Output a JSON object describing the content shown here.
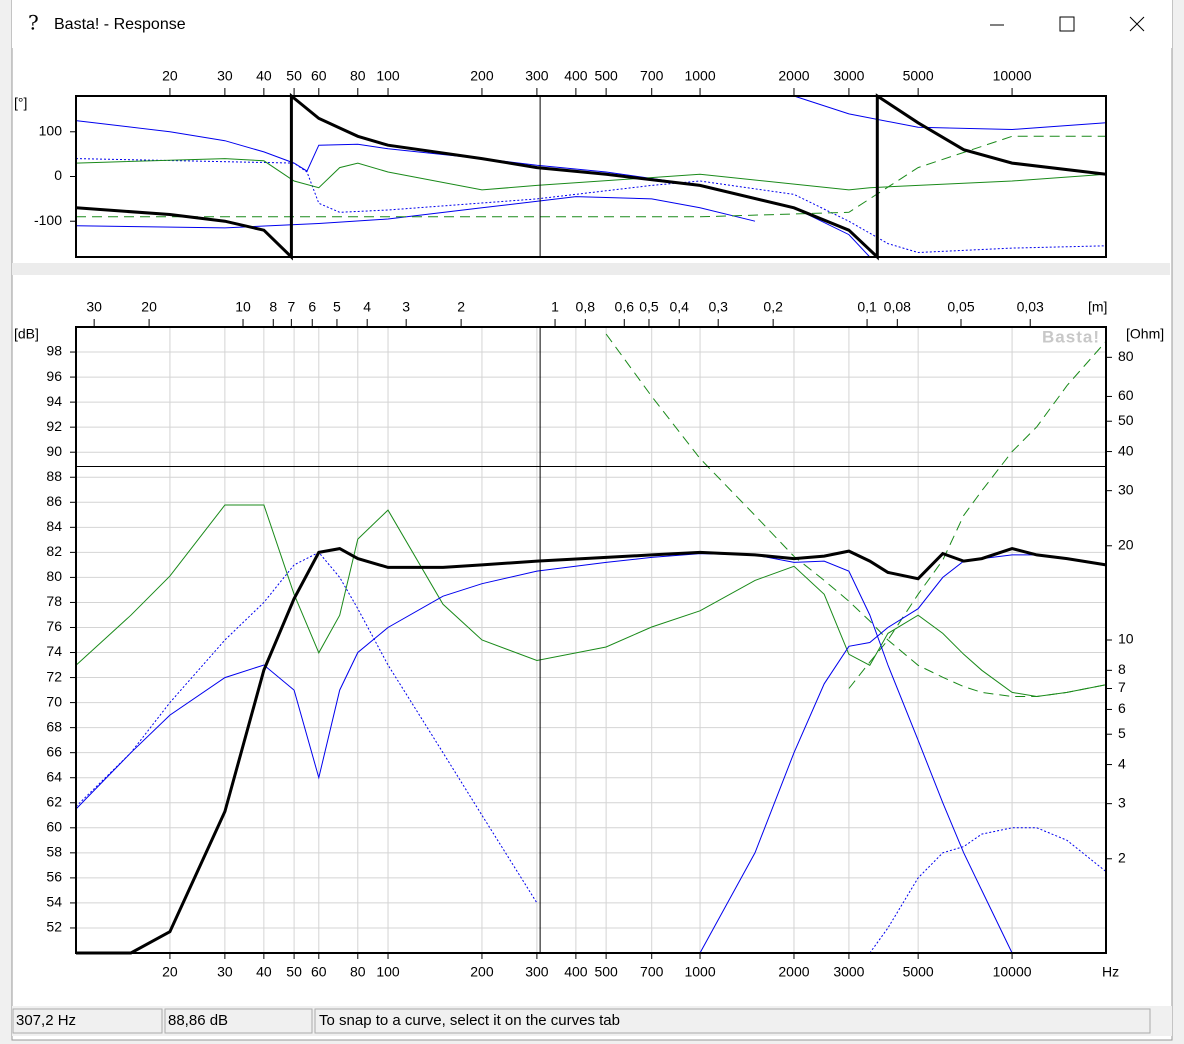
{
  "window": {
    "title": "Basta! - Response"
  },
  "status": [
    "307,2 Hz",
    "88,86 dB",
    "To snap to a curve, select it on the curves tab"
  ],
  "chart_data": [
    {
      "type": "line",
      "y_label": "[°]",
      "xscale": "log",
      "xlim": [
        10,
        20000
      ],
      "xticks": [
        20,
        30,
        40,
        50,
        60,
        80,
        100,
        200,
        300,
        400,
        500,
        700,
        1000,
        2000,
        3000,
        5000,
        10000
      ],
      "ylim": [
        -180,
        180
      ],
      "yticks": [
        100,
        0,
        -100
      ],
      "cursor": {
        "x": 307.2
      },
      "series": [
        {
          "color": "#0000ee",
          "style": "solid",
          "width": 1,
          "x": [
            10,
            20,
            30,
            40,
            50,
            55,
            60,
            80,
            100,
            200,
            300,
            500,
            1000,
            2000,
            3000,
            3500
          ],
          "values": [
            125,
            100,
            80,
            55,
            30,
            12,
            70,
            72,
            62,
            40,
            25,
            10,
            -20,
            -70,
            -130,
            -180
          ]
        },
        {
          "color": "#0000ee",
          "style": "solid",
          "width": 1,
          "x": [
            10,
            30,
            60,
            100,
            200,
            400,
            700,
            1000,
            1500
          ],
          "values": [
            -110,
            -115,
            -105,
            -95,
            -70,
            -45,
            -50,
            -70,
            -100
          ]
        },
        {
          "color": "#0000ee",
          "style": "solid",
          "width": 1,
          "x": [
            2000,
            3000,
            5000,
            10000,
            20000
          ],
          "values": [
            180,
            140,
            110,
            105,
            120
          ]
        },
        {
          "color": "#0000ee",
          "style": "dotted",
          "width": 1,
          "x": [
            10,
            50,
            55,
            60,
            70,
            100,
            300,
            700,
            1000,
            2000,
            3000,
            4000,
            5000,
            10000,
            20000
          ],
          "values": [
            40,
            30,
            10,
            -60,
            -80,
            -75,
            -50,
            -20,
            -10,
            -40,
            -100,
            -150,
            -170,
            -160,
            -155
          ]
        },
        {
          "color": "#1a8a1a",
          "style": "solid",
          "width": 1,
          "x": [
            10,
            30,
            40,
            50,
            60,
            70,
            80,
            100,
            200,
            300,
            1000,
            3000,
            3500,
            5000,
            10000,
            20000
          ],
          "values": [
            30,
            40,
            35,
            -10,
            -25,
            20,
            30,
            10,
            -30,
            -20,
            5,
            -30,
            -25,
            -20,
            -10,
            5
          ]
        },
        {
          "color": "#1a8a1a",
          "style": "dashed",
          "width": 1,
          "x": [
            10,
            1000,
            3000,
            5000,
            10000,
            20000
          ],
          "values": [
            -90,
            -90,
            -80,
            20,
            90,
            90
          ]
        },
        {
          "color": "#000000",
          "style": "solid",
          "width": 3,
          "x": [
            10,
            20,
            30,
            40,
            49,
            49,
            60,
            80,
            100,
            200,
            300,
            500,
            1000,
            2000,
            3000,
            3700,
            3700,
            5000,
            7000,
            10000,
            20000
          ],
          "values": [
            -70,
            -85,
            -100,
            -120,
            -180,
            180,
            130,
            90,
            70,
            40,
            20,
            5,
            -20,
            -70,
            -120,
            -180,
            180,
            120,
            60,
            30,
            5
          ]
        }
      ]
    },
    {
      "type": "line",
      "y_label": "[dB]",
      "y2_label": "[Ohm]",
      "x2_label": "[m]",
      "x_unit": "Hz",
      "watermark": "Basta!",
      "grid": true,
      "xscale": "log",
      "xlim": [
        10,
        20000
      ],
      "xticks": [
        20,
        30,
        40,
        50,
        60,
        80,
        100,
        200,
        300,
        400,
        500,
        700,
        1000,
        2000,
        3000,
        5000,
        10000
      ],
      "x2scale": "log",
      "x2lim": [
        34.3,
        0.01715
      ],
      "x2ticks": [
        30,
        20,
        10,
        8,
        7,
        6,
        5,
        4,
        3,
        2,
        1,
        {
          "value": 0.8,
          "label": "0,8"
        },
        {
          "value": 0.6,
          "label": "0,6"
        },
        {
          "value": 0.5,
          "label": "0,5"
        },
        {
          "value": 0.4,
          "label": "0,4"
        },
        {
          "value": 0.3,
          "label": "0,3"
        },
        {
          "value": 0.2,
          "label": "0,2"
        },
        {
          "value": 0.1,
          "label": "0,1"
        },
        {
          "value": 0.08,
          "label": "0,08"
        },
        {
          "value": 0.05,
          "label": "0,05"
        },
        {
          "value": 0.03,
          "label": "0,03"
        }
      ],
      "ylim": [
        50,
        100
      ],
      "yticks": [
        52,
        54,
        56,
        58,
        60,
        62,
        64,
        66,
        68,
        70,
        72,
        74,
        76,
        78,
        80,
        82,
        84,
        86,
        88,
        90,
        92,
        94,
        96,
        98
      ],
      "y2scale": "log",
      "y2lim": [
        1,
        100
      ],
      "y2ticks": [
        2,
        3,
        4,
        5,
        6,
        7,
        8,
        10,
        20,
        30,
        40,
        50,
        60,
        80
      ],
      "cursor": {
        "x": 307.2,
        "y": 88.86
      },
      "x": [
        10,
        15,
        20,
        30,
        40,
        50,
        60,
        70,
        80,
        100,
        150,
        200,
        300,
        500,
        700,
        1000,
        1500,
        2000,
        2500,
        3000,
        3500,
        4000,
        5000,
        6000,
        7000,
        8000,
        10000,
        12000,
        15000,
        20000
      ],
      "series": [
        {
          "color": "#1a8a1a",
          "style": "solid",
          "width": 1,
          "axis": "y2",
          "values": [
            8.3,
            12,
            16,
            27,
            27,
            14,
            9.1,
            12,
            21,
            26,
            13,
            10,
            8.6,
            9.5,
            11,
            12.4,
            15.5,
            17.2,
            14,
            9,
            8.3,
            10.5,
            12,
            10.5,
            9,
            8,
            6.8,
            6.6,
            6.8,
            7.2
          ]
        },
        {
          "color": "#1a8a1a",
          "style": "dashed",
          "width": 1,
          "axis": "y2",
          "values": [
            null,
            null,
            null,
            null,
            null,
            null,
            null,
            null,
            null,
            null,
            null,
            null,
            null,
            95,
            60,
            38,
            25,
            18.5,
            15.5,
            13.3,
            11.5,
            10,
            8.3,
            7.6,
            7.1,
            6.8,
            6.6,
            6.6,
            6.8,
            7.2
          ]
        },
        {
          "color": "#1a8a1a",
          "style": "dashed",
          "width": 1,
          "axis": "y2",
          "values": [
            null,
            null,
            null,
            null,
            null,
            null,
            null,
            null,
            null,
            null,
            null,
            null,
            null,
            null,
            null,
            null,
            null,
            null,
            null,
            7,
            8.5,
            10,
            14,
            18,
            25,
            30,
            40,
            48,
            65,
            90
          ]
        },
        {
          "color": "#0000ee",
          "style": "dotted",
          "width": 1,
          "values": [
            61.7,
            66,
            70,
            75,
            78,
            81,
            82,
            80,
            77.5,
            73,
            66,
            61,
            54,
            null,
            null,
            null,
            null,
            null,
            null,
            null,
            null,
            null,
            null,
            null,
            null,
            null,
            null,
            null,
            null,
            null
          ]
        },
        {
          "color": "#0000ee",
          "style": "dotted",
          "width": 1,
          "values": [
            null,
            null,
            null,
            null,
            null,
            null,
            null,
            null,
            null,
            null,
            null,
            null,
            null,
            null,
            null,
            null,
            null,
            null,
            null,
            null,
            50,
            52,
            56,
            58,
            58.5,
            59.5,
            60,
            60,
            59,
            56.5
          ]
        },
        {
          "color": "#0000ee",
          "style": "solid",
          "width": 1,
          "values": [
            61.5,
            66,
            69,
            72,
            73,
            71,
            64,
            71,
            74,
            76,
            78.5,
            79.5,
            80.5,
            81.2,
            81.6,
            81.9,
            81.8,
            81.2,
            81.3,
            80.5,
            77,
            73,
            67,
            62,
            58,
            55,
            50,
            null,
            null,
            null
          ]
        },
        {
          "color": "#0000ee",
          "style": "solid",
          "width": 1,
          "values": [
            null,
            null,
            null,
            null,
            null,
            null,
            null,
            null,
            null,
            null,
            null,
            null,
            null,
            null,
            null,
            50,
            58,
            66,
            71.5,
            74.5,
            74.8,
            76,
            77.5,
            80,
            81.3,
            81.5,
            81.8,
            81.8,
            81.5,
            81
          ]
        },
        {
          "color": "#000000",
          "style": "solid",
          "width": 3,
          "values": [
            50,
            50,
            51.7,
            61.3,
            72.6,
            78.3,
            82,
            82.3,
            81.5,
            80.8,
            80.8,
            81,
            81.3,
            81.6,
            81.8,
            82,
            81.8,
            81.5,
            81.7,
            82.1,
            81.3,
            80.4,
            79.9,
            81.9,
            81.3,
            81.5,
            82.3,
            81.8,
            81.5,
            81
          ]
        }
      ]
    }
  ]
}
